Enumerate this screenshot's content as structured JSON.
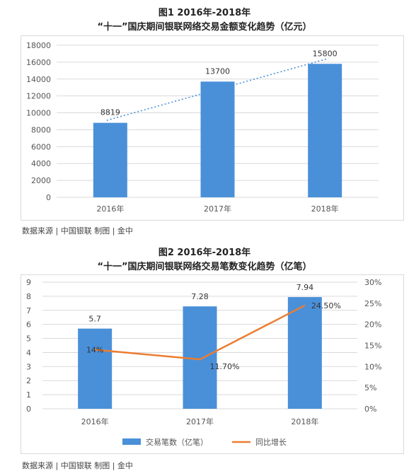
{
  "chart_data": [
    {
      "type": "bar",
      "title_line1": "图1 2016年-2018年",
      "title_line2": "“十一”国庆期间银联网络交易金额变化趋势（亿元）",
      "categories": [
        "2016年",
        "2017年",
        "2018年"
      ],
      "series": [
        {
          "values": [
            8819,
            13700,
            15800
          ],
          "data_labels": [
            "8819",
            "13700",
            "15800"
          ]
        }
      ],
      "ylim": [
        0,
        18000
      ],
      "y_ticks": [
        "0",
        "2000",
        "4000",
        "6000",
        "8000",
        "10000",
        "12000",
        "14000",
        "16000",
        "18000"
      ],
      "trendline": "dotted",
      "grid": true,
      "bar_color": "#4a90d9"
    },
    {
      "type": "bar",
      "title_line1": "图2 2016年-2018年",
      "title_line2": "“十一”国庆期间银联网络交易笔数变化趋势（亿笔）",
      "categories": [
        "2016年",
        "2017年",
        "2018年"
      ],
      "series": [
        {
          "name": "交易笔数（亿笔）",
          "type": "bar",
          "values": [
            5.7,
            7.28,
            7.94
          ],
          "data_labels": [
            "5.7",
            "7.28",
            "7.94"
          ],
          "axis": "left"
        },
        {
          "name": "同比增长",
          "type": "line",
          "values": [
            14,
            11.7,
            24.5
          ],
          "data_labels": [
            "14%",
            "11.70%",
            "24.50%"
          ],
          "axis": "right"
        }
      ],
      "ylim": [
        0,
        9
      ],
      "y_ticks": [
        "0",
        "1",
        "2",
        "3",
        "4",
        "5",
        "6",
        "7",
        "8",
        "9"
      ],
      "y2lim": [
        0,
        30
      ],
      "y2_ticks": [
        "0%",
        "5%",
        "10%",
        "15%",
        "20%",
        "25%",
        "30%"
      ],
      "grid": true,
      "legend": "bottom",
      "bar_color": "#4a90d9",
      "line_color": "#ed7d31"
    }
  ],
  "sources": {
    "chart1": "数据来源 | 中国银联  制图 | 金中",
    "chart2": "数据来源 | 中国银联  制图 | 金中"
  }
}
